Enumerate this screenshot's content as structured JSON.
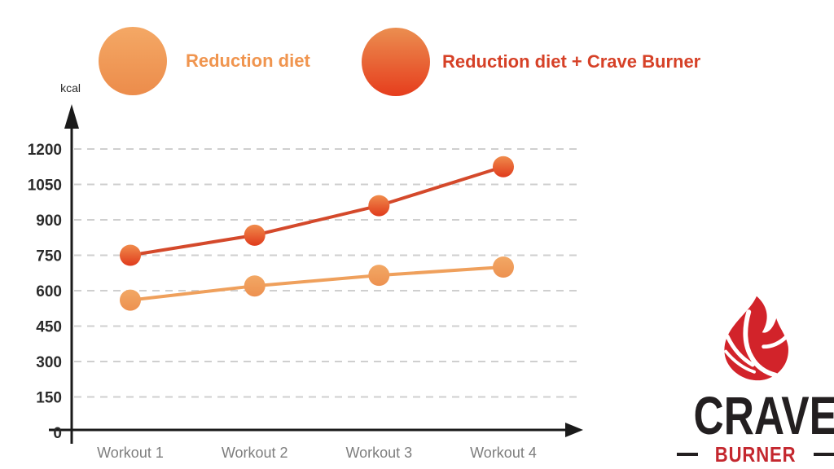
{
  "page": {
    "background": "#ffffff"
  },
  "legend": {
    "items": [
      {
        "label": "Reduction diet",
        "text_color": "#f0954f",
        "circle_top": "#f4a865",
        "circle_bottom": "#ec8c4b"
      },
      {
        "label": "Reduction diet + Crave Burner",
        "text_color": "#d64127",
        "circle_top": "#eb8e50",
        "circle_bottom": "#e63d1d"
      }
    ]
  },
  "chart_data": {
    "type": "line",
    "title": "",
    "unit_label": "kcal",
    "categories": [
      "Workout 1",
      "Workout 2",
      "Workout 3",
      "Workout 4"
    ],
    "series": [
      {
        "name": "Reduction diet",
        "values": [
          560,
          620,
          665,
          700
        ],
        "line_color": "#efa05c",
        "point_top": "#f2a865",
        "point_bottom": "#ed9150"
      },
      {
        "name": "Reduction diet + Crave Burner",
        "values": [
          750,
          835,
          960,
          1125
        ],
        "line_color": "#d4492b",
        "point_top": "#f08c4c",
        "point_bottom": "#e03a1c"
      }
    ],
    "y_ticks": [
      0,
      150,
      300,
      450,
      600,
      750,
      900,
      1050,
      1200
    ],
    "ylim": [
      0,
      1300
    ],
    "grid": "horizontal-dashed",
    "grid_color": "#cfcfcf",
    "axis_color": "#1a1a1a",
    "legend_position": "top"
  },
  "logo": {
    "icon": "flame-icon",
    "flame_color": "#d2232a",
    "title": "CRAVE",
    "title_color": "#231f20",
    "subtitle": "BURNER",
    "subtitle_color": "#c4272e"
  }
}
